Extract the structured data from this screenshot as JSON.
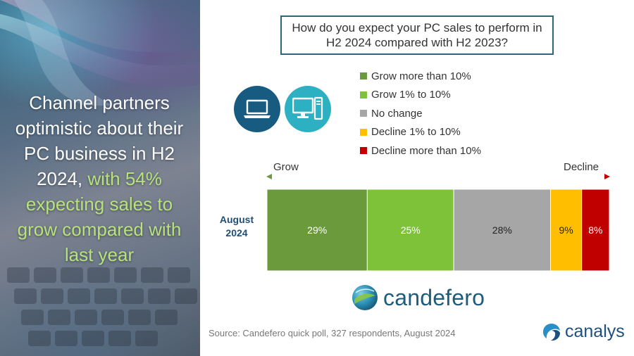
{
  "headline": {
    "line_plain": "Channel partners optimistic about their PC business in H2 2024, ",
    "line_accent": "with 54% expecting sales to grow compared with last year"
  },
  "question": "How do you expect your PC sales to perform in H2 2024 compared with H2 2023?",
  "axis": {
    "left_label": "Grow",
    "right_label": "Decline"
  },
  "source": "Source: Candefero quick poll, 327 respondents, August 2024",
  "brand": {
    "candefero": "candefero",
    "canalys": "canalys"
  },
  "icons": [
    "laptop-icon",
    "desktop-icon"
  ],
  "colors": {
    "grow_more_than_10": "#6a9a3c",
    "grow_1_to_10": "#7ec23a",
    "no_change": "#a6a6a6",
    "decline_1_to_10": "#ffbf00",
    "decline_more_than_10": "#c00000",
    "accent_text": "#b7e27c",
    "brand_blue": "#1f5c7c"
  },
  "chart_data": {
    "type": "bar",
    "orientation": "horizontal",
    "stacked": true,
    "normalized_percent": true,
    "categories": [
      "August 2024"
    ],
    "series": [
      {
        "name": "Grow more than 10%",
        "values": [
          29
        ],
        "label": "29%",
        "color": "#6a9a3c"
      },
      {
        "name": "Grow 1% to 10%",
        "values": [
          25
        ],
        "label": "25%",
        "color": "#7ec23a"
      },
      {
        "name": "No change",
        "values": [
          28
        ],
        "label": "28%",
        "color": "#a6a6a6"
      },
      {
        "name": "Decline 1% to 10%",
        "values": [
          9
        ],
        "label": "9%",
        "color": "#ffbf00"
      },
      {
        "name": "Decline more than 10%",
        "values": [
          8
        ],
        "label": "8%",
        "color": "#c00000"
      }
    ],
    "title": "How do you expect your PC sales to perform in H2 2024 compared with H2 2023?",
    "legend_position": "top-right",
    "grid": false
  }
}
